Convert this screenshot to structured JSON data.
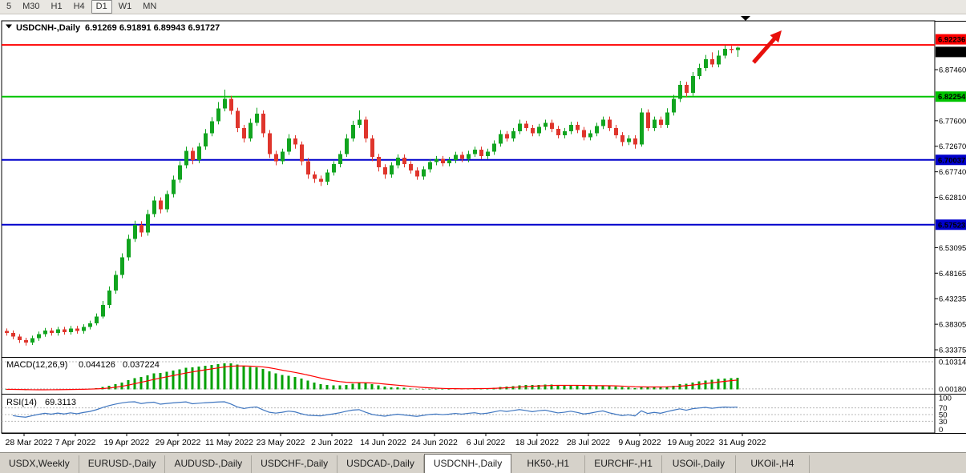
{
  "toolbar": {
    "timeframe_buttons": [
      "5",
      "M30",
      "H1",
      "H4",
      "D1",
      "W1",
      "MN"
    ],
    "active": "D1"
  },
  "chart_data": {
    "type": "candlestick",
    "symbol": "USDCNH-",
    "period": "Daily",
    "title": "USDCNH-,Daily",
    "ohlc_text": "6.91269 6.91891 6.89943 6.91727",
    "open": "6.91269",
    "high": "6.91891",
    "low": "6.89943",
    "close": "6.91727",
    "colors": {
      "up": "#11a41f",
      "down": "#df352c",
      "macd_hist": "#00a000",
      "macd_signal": "#ff0000",
      "rsi_line": "#3f76c0",
      "resistance": "#ff0000",
      "support_green": "#00c400",
      "support_blue": "#0000cc",
      "annotation_red": "#e8100c"
    },
    "y_axis": {
      "price_max": 6.9689,
      "price_min": 6.3199,
      "ticks": [
        "6.87460",
        "6.77600",
        "6.72670",
        "6.67740",
        "6.62810",
        "6.53095",
        "6.48165",
        "6.43235",
        "6.38305",
        "6.33375"
      ]
    },
    "horizontal_lines": [
      {
        "name": "resistance-line-red",
        "price": 6.92236,
        "label": "6.92236",
        "color": "#ff0000"
      },
      {
        "name": "support-line-green",
        "price": 6.82254,
        "label": "6.82254",
        "color": "#00c400"
      },
      {
        "name": "support-line-blue-1",
        "price": 6.70037,
        "label": "6.70037",
        "color": "#0000cc"
      },
      {
        "name": "support-line-blue-2",
        "price": 6.57523,
        "label": "6.57523",
        "color": "#0000cc"
      }
    ],
    "current_price": {
      "value": 6.91727,
      "label": "6.91727",
      "box_color": "#000000"
    },
    "x_tick_labels": [
      "28 Mar 2022",
      "7 Apr 2022",
      "19 Apr 2022",
      "29 Apr 2022",
      "11 May 2022",
      "23 May 2022",
      "2 Jun 2022",
      "14 Jun 2022",
      "24 Jun 2022",
      "6 Jul 2022",
      "18 Jul 2022",
      "28 Jul 2022",
      "9 Aug 2022",
      "19 Aug 2022",
      "31 Aug 2022"
    ],
    "x_tick_indices": [
      2.75,
      10.75,
      18.75,
      26.75,
      34.75,
      42.75,
      50.75,
      58.75,
      66.75,
      74.75,
      82.75,
      90.75,
      98.75,
      106.75,
      114.75
    ],
    "candles": [
      [
        6.37,
        6.375,
        6.361,
        6.366
      ],
      [
        6.366,
        6.371,
        6.354,
        6.359
      ],
      [
        6.359,
        6.364,
        6.347,
        6.352
      ],
      [
        6.352,
        6.357,
        6.342,
        6.348
      ],
      [
        6.348,
        6.361,
        6.343,
        6.356
      ],
      [
        6.356,
        6.369,
        6.351,
        6.364
      ],
      [
        6.364,
        6.376,
        6.359,
        6.371
      ],
      [
        6.371,
        6.376,
        6.361,
        6.366
      ],
      [
        6.366,
        6.378,
        6.361,
        6.373
      ],
      [
        6.373,
        6.378,
        6.363,
        6.368
      ],
      [
        6.368,
        6.38,
        6.363,
        6.375
      ],
      [
        6.375,
        6.38,
        6.365,
        6.37
      ],
      [
        6.37,
        6.383,
        6.365,
        6.378
      ],
      [
        6.378,
        6.39,
        6.373,
        6.385
      ],
      [
        6.385,
        6.404,
        6.381,
        6.398
      ],
      [
        6.398,
        6.428,
        6.394,
        6.42
      ],
      [
        6.42,
        6.456,
        6.414,
        6.448
      ],
      [
        6.448,
        6.486,
        6.442,
        6.478
      ],
      [
        6.478,
        6.52,
        6.472,
        6.512
      ],
      [
        6.512,
        6.556,
        6.506,
        6.548
      ],
      [
        6.548,
        6.583,
        6.542,
        6.575
      ],
      [
        6.575,
        6.582,
        6.552,
        6.56
      ],
      [
        6.56,
        6.604,
        6.554,
        6.596
      ],
      [
        6.596,
        6.63,
        6.59,
        6.622
      ],
      [
        6.622,
        6.628,
        6.597,
        6.605
      ],
      [
        6.605,
        6.641,
        6.599,
        6.634
      ],
      [
        6.634,
        6.67,
        6.628,
        6.662
      ],
      [
        6.662,
        6.698,
        6.656,
        6.69
      ],
      [
        6.69,
        6.726,
        6.684,
        6.718
      ],
      [
        6.718,
        6.724,
        6.692,
        6.7
      ],
      [
        6.7,
        6.733,
        6.694,
        6.726
      ],
      [
        6.726,
        6.76,
        6.72,
        6.752
      ],
      [
        6.752,
        6.783,
        6.746,
        6.775
      ],
      [
        6.775,
        6.812,
        6.769,
        6.8
      ],
      [
        6.8,
        6.836,
        6.794,
        6.818
      ],
      [
        6.818,
        6.824,
        6.788,
        6.795
      ],
      [
        6.795,
        6.801,
        6.754,
        6.762
      ],
      [
        6.762,
        6.768,
        6.734,
        6.742
      ],
      [
        6.742,
        6.78,
        6.736,
        6.772
      ],
      [
        6.772,
        6.801,
        6.766,
        6.79
      ],
      [
        6.79,
        6.796,
        6.744,
        6.752
      ],
      [
        6.752,
        6.758,
        6.704,
        6.712
      ],
      [
        6.712,
        6.718,
        6.69,
        6.698
      ],
      [
        6.698,
        6.722,
        6.692,
        6.716
      ],
      [
        6.716,
        6.75,
        6.71,
        6.742
      ],
      [
        6.742,
        6.748,
        6.722,
        6.73
      ],
      [
        6.73,
        6.736,
        6.69,
        6.698
      ],
      [
        6.698,
        6.704,
        6.664,
        6.672
      ],
      [
        6.672,
        6.678,
        6.656,
        6.664
      ],
      [
        6.664,
        6.67,
        6.65,
        6.658
      ],
      [
        6.658,
        6.682,
        6.652,
        6.676
      ],
      [
        6.676,
        6.698,
        6.67,
        6.692
      ],
      [
        6.692,
        6.718,
        6.686,
        6.712
      ],
      [
        6.712,
        6.75,
        6.706,
        6.742
      ],
      [
        6.742,
        6.776,
        6.736,
        6.768
      ],
      [
        6.768,
        6.796,
        6.762,
        6.778
      ],
      [
        6.778,
        6.784,
        6.734,
        6.742
      ],
      [
        6.742,
        6.748,
        6.698,
        6.706
      ],
      [
        6.706,
        6.712,
        6.678,
        6.686
      ],
      [
        6.686,
        6.692,
        6.664,
        6.672
      ],
      [
        6.672,
        6.696,
        6.666,
        6.69
      ],
      [
        6.69,
        6.711,
        6.684,
        6.705
      ],
      [
        6.705,
        6.711,
        6.686,
        6.692
      ],
      [
        6.692,
        6.698,
        6.674,
        6.68
      ],
      [
        6.68,
        6.686,
        6.662,
        6.668
      ],
      [
        6.668,
        6.688,
        6.662,
        6.682
      ],
      [
        6.682,
        6.702,
        6.676,
        6.696
      ],
      [
        6.696,
        6.708,
        6.69,
        6.702
      ],
      [
        6.702,
        6.708,
        6.688,
        6.694
      ],
      [
        6.694,
        6.706,
        6.688,
        6.7
      ],
      [
        6.7,
        6.716,
        6.694,
        6.71
      ],
      [
        6.71,
        6.716,
        6.696,
        6.702
      ],
      [
        6.702,
        6.718,
        6.696,
        6.712
      ],
      [
        6.712,
        6.726,
        6.706,
        6.72
      ],
      [
        6.72,
        6.726,
        6.702,
        6.708
      ],
      [
        6.708,
        6.722,
        6.702,
        6.716
      ],
      [
        6.716,
        6.738,
        6.71,
        6.732
      ],
      [
        6.732,
        6.758,
        6.726,
        6.75
      ],
      [
        6.75,
        6.756,
        6.736,
        6.742
      ],
      [
        6.742,
        6.762,
        6.736,
        6.756
      ],
      [
        6.756,
        6.778,
        6.75,
        6.77
      ],
      [
        6.77,
        6.776,
        6.756,
        6.762
      ],
      [
        6.762,
        6.768,
        6.746,
        6.752
      ],
      [
        6.752,
        6.77,
        6.746,
        6.764
      ],
      [
        6.764,
        6.778,
        6.758,
        6.772
      ],
      [
        6.772,
        6.778,
        6.754,
        6.76
      ],
      [
        6.76,
        6.766,
        6.742,
        6.748
      ],
      [
        6.748,
        6.762,
        6.742,
        6.756
      ],
      [
        6.756,
        6.774,
        6.75,
        6.768
      ],
      [
        6.768,
        6.774,
        6.752,
        6.758
      ],
      [
        6.758,
        6.764,
        6.738,
        6.744
      ],
      [
        6.744,
        6.758,
        6.738,
        6.752
      ],
      [
        6.752,
        6.772,
        6.746,
        6.766
      ],
      [
        6.766,
        6.784,
        6.76,
        6.778
      ],
      [
        6.778,
        6.784,
        6.756,
        6.762
      ],
      [
        6.762,
        6.768,
        6.742,
        6.748
      ],
      [
        6.748,
        6.754,
        6.727,
        6.735
      ],
      [
        6.735,
        6.748,
        6.729,
        6.742
      ],
      [
        6.742,
        6.748,
        6.722,
        6.73
      ],
      [
        6.73,
        6.8,
        6.726,
        6.792
      ],
      [
        6.792,
        6.798,
        6.756,
        6.762
      ],
      [
        6.762,
        6.784,
        6.756,
        6.778
      ],
      [
        6.778,
        6.784,
        6.762,
        6.768
      ],
      [
        6.768,
        6.8,
        6.762,
        6.792
      ],
      [
        6.792,
        6.826,
        6.786,
        6.818
      ],
      [
        6.818,
        6.853,
        6.812,
        6.845
      ],
      [
        6.845,
        6.851,
        6.822,
        6.83
      ],
      [
        6.83,
        6.87,
        6.824,
        6.862
      ],
      [
        6.862,
        6.886,
        6.856,
        6.878
      ],
      [
        6.878,
        6.903,
        6.872,
        6.895
      ],
      [
        6.895,
        6.908,
        6.879,
        6.885
      ],
      [
        6.885,
        6.912,
        6.879,
        6.902
      ],
      [
        6.902,
        6.9215,
        6.896,
        6.915
      ],
      [
        6.915,
        6.9205,
        6.9065,
        6.9127
      ],
      [
        6.91269,
        6.91891,
        6.89943,
        6.91727
      ]
    ],
    "indicators": [
      {
        "type": "MACD",
        "label": "MACD(12,26,9)",
        "value_main": "0.044126",
        "value_signal": "0.037224",
        "axis_labels": [
          "0.103145",
          "0.00180"
        ]
      },
      {
        "type": "RSI",
        "label": "RSI(14)",
        "value": "69.3113",
        "axis_labels": [
          "100",
          "70",
          "50",
          "30",
          "0"
        ],
        "levels": [
          70,
          50,
          30
        ]
      }
    ],
    "annotations": [
      {
        "name": "trend-arrow-annotation",
        "shape": "arrow-up-right",
        "color": "#e8100c"
      }
    ]
  },
  "tabs": {
    "items": [
      {
        "label": "USDX,Weekly"
      },
      {
        "label": "EURUSD-,Daily"
      },
      {
        "label": "AUDUSD-,Daily"
      },
      {
        "label": "USDCHF-,Daily"
      },
      {
        "label": "USDCAD-,Daily"
      },
      {
        "label": "USDCNH-,Daily",
        "active": true
      },
      {
        "label": "HK50-,H1"
      },
      {
        "label": "EURCHF-,H1"
      },
      {
        "label": "USOil-,Daily"
      },
      {
        "label": "UKOil-,H4"
      }
    ]
  }
}
